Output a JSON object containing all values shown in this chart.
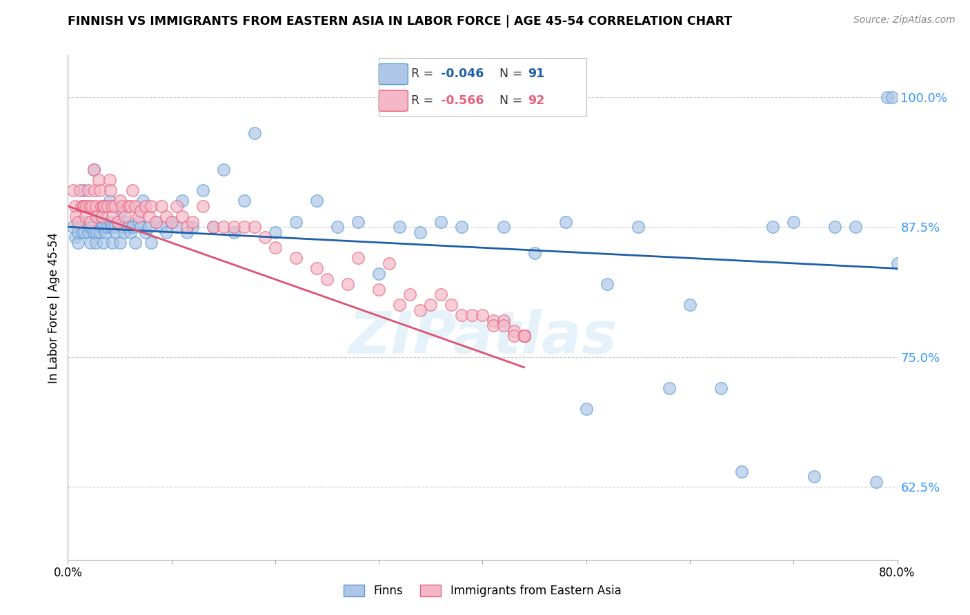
{
  "title": "FINNISH VS IMMIGRANTS FROM EASTERN ASIA IN LABOR FORCE | AGE 45-54 CORRELATION CHART",
  "source": "Source: ZipAtlas.com",
  "ylabel": "In Labor Force | Age 45-54",
  "xlim": [
    0.0,
    0.8
  ],
  "ylim": [
    0.555,
    1.04
  ],
  "yticks": [
    0.625,
    0.75,
    0.875,
    1.0
  ],
  "ytick_labels": [
    "62.5%",
    "75.0%",
    "87.5%",
    "100.0%"
  ],
  "xticks": [
    0.0,
    0.1,
    0.2,
    0.3,
    0.4,
    0.5,
    0.6,
    0.7,
    0.8
  ],
  "xtick_labels": [
    "0.0%",
    "",
    "",
    "",
    "",
    "",
    "",
    "",
    "80.0%"
  ],
  "finns_color": "#aec6e8",
  "immigrants_color": "#f4b8c8",
  "finns_edge_color": "#5b9bd5",
  "immigrants_edge_color": "#e8607a",
  "trend_finns_color": "#1f5fa6",
  "trend_immigrants_color": "#e05070",
  "legend_finns_label": "Finns",
  "legend_immigrants_label": "Immigrants from Eastern Asia",
  "R_finns": -0.046,
  "N_finns": 91,
  "R_immigrants": -0.566,
  "N_immigrants": 92,
  "watermark": "ZIPatlas",
  "finns_x": [
    0.005,
    0.007,
    0.01,
    0.01,
    0.012,
    0.014,
    0.015,
    0.016,
    0.018,
    0.02,
    0.021,
    0.022,
    0.023,
    0.025,
    0.025,
    0.026,
    0.027,
    0.028,
    0.03,
    0.031,
    0.032,
    0.033,
    0.034,
    0.035,
    0.036,
    0.038,
    0.04,
    0.041,
    0.042,
    0.043,
    0.045,
    0.046,
    0.048,
    0.05,
    0.051,
    0.053,
    0.054,
    0.056,
    0.058,
    0.06,
    0.062,
    0.065,
    0.068,
    0.07,
    0.072,
    0.075,
    0.078,
    0.08,
    0.085,
    0.09,
    0.095,
    0.1,
    0.105,
    0.11,
    0.115,
    0.12,
    0.13,
    0.14,
    0.15,
    0.16,
    0.17,
    0.18,
    0.2,
    0.22,
    0.24,
    0.26,
    0.28,
    0.3,
    0.32,
    0.34,
    0.36,
    0.38,
    0.42,
    0.45,
    0.48,
    0.5,
    0.52,
    0.55,
    0.58,
    0.6,
    0.63,
    0.65,
    0.68,
    0.7,
    0.72,
    0.74,
    0.76,
    0.78,
    0.79,
    0.795,
    0.8
  ],
  "finns_y": [
    0.875,
    0.865,
    0.86,
    0.87,
    0.88,
    0.87,
    0.91,
    0.87,
    0.88,
    0.87,
    0.875,
    0.86,
    0.875,
    0.93,
    0.87,
    0.88,
    0.86,
    0.87,
    0.89,
    0.87,
    0.88,
    0.875,
    0.86,
    0.875,
    0.87,
    0.875,
    0.9,
    0.88,
    0.875,
    0.86,
    0.875,
    0.87,
    0.88,
    0.86,
    0.89,
    0.875,
    0.87,
    0.88,
    0.875,
    0.87,
    0.875,
    0.86,
    0.88,
    0.875,
    0.9,
    0.87,
    0.875,
    0.86,
    0.88,
    0.875,
    0.87,
    0.88,
    0.875,
    0.9,
    0.87,
    0.875,
    0.91,
    0.875,
    0.93,
    0.87,
    0.9,
    0.965,
    0.87,
    0.88,
    0.9,
    0.875,
    0.88,
    0.83,
    0.875,
    0.87,
    0.88,
    0.875,
    0.875,
    0.85,
    0.88,
    0.7,
    0.82,
    0.875,
    0.72,
    0.8,
    0.72,
    0.64,
    0.875,
    0.88,
    0.635,
    0.875,
    0.875,
    0.63,
    1.0,
    1.0,
    0.84
  ],
  "immigrants_x": [
    0.005,
    0.007,
    0.008,
    0.01,
    0.012,
    0.013,
    0.015,
    0.016,
    0.017,
    0.018,
    0.02,
    0.021,
    0.022,
    0.023,
    0.025,
    0.026,
    0.027,
    0.028,
    0.03,
    0.031,
    0.032,
    0.033,
    0.034,
    0.035,
    0.038,
    0.04,
    0.041,
    0.042,
    0.043,
    0.045,
    0.048,
    0.05,
    0.052,
    0.055,
    0.058,
    0.06,
    0.062,
    0.065,
    0.068,
    0.07,
    0.075,
    0.078,
    0.08,
    0.085,
    0.09,
    0.095,
    0.1,
    0.105,
    0.11,
    0.115,
    0.12,
    0.13,
    0.14,
    0.15,
    0.16,
    0.17,
    0.18,
    0.19,
    0.2,
    0.22,
    0.24,
    0.25,
    0.27,
    0.28,
    0.3,
    0.31,
    0.32,
    0.33,
    0.34,
    0.35,
    0.36,
    0.37,
    0.38,
    0.39,
    0.4,
    0.41,
    0.41,
    0.42,
    0.42,
    0.43,
    0.43,
    0.44,
    0.44,
    0.44,
    0.44,
    0.44,
    0.44,
    0.44,
    0.44,
    0.44,
    0.44,
    0.44
  ],
  "immigrants_y": [
    0.91,
    0.895,
    0.885,
    0.88,
    0.91,
    0.895,
    0.895,
    0.895,
    0.885,
    0.895,
    0.91,
    0.895,
    0.88,
    0.895,
    0.93,
    0.91,
    0.895,
    0.885,
    0.92,
    0.91,
    0.895,
    0.885,
    0.895,
    0.895,
    0.895,
    0.92,
    0.91,
    0.895,
    0.885,
    0.895,
    0.88,
    0.9,
    0.895,
    0.885,
    0.895,
    0.895,
    0.91,
    0.895,
    0.885,
    0.89,
    0.895,
    0.885,
    0.895,
    0.88,
    0.895,
    0.885,
    0.88,
    0.895,
    0.885,
    0.875,
    0.88,
    0.895,
    0.875,
    0.875,
    0.875,
    0.875,
    0.875,
    0.865,
    0.855,
    0.845,
    0.835,
    0.825,
    0.82,
    0.845,
    0.815,
    0.84,
    0.8,
    0.81,
    0.795,
    0.8,
    0.81,
    0.8,
    0.79,
    0.79,
    0.79,
    0.785,
    0.78,
    0.785,
    0.78,
    0.775,
    0.77,
    0.77,
    0.77,
    0.77,
    0.77,
    0.77,
    0.77,
    0.77,
    0.77,
    0.77,
    0.77,
    0.77
  ]
}
